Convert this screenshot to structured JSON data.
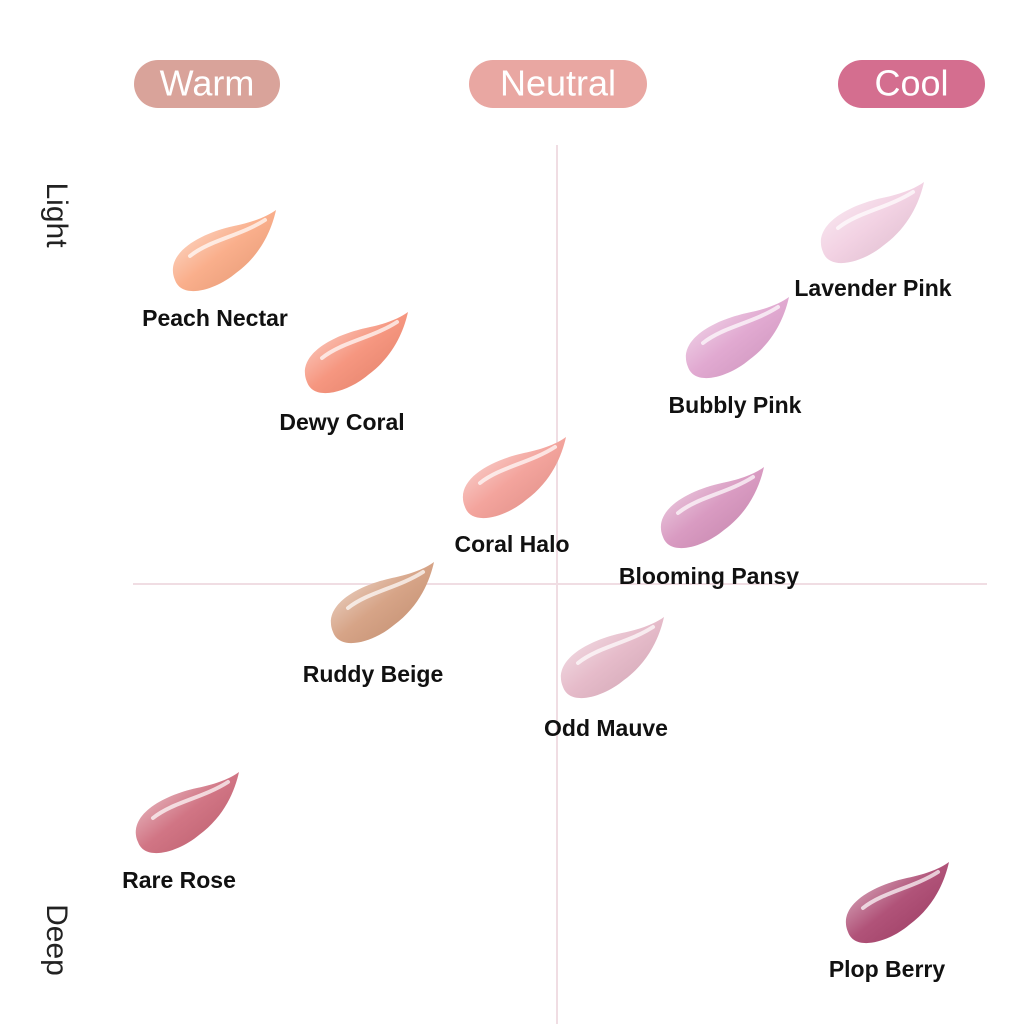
{
  "columns": [
    "Warm",
    "Neutral",
    "Cool"
  ],
  "rows": [
    "Light",
    "Deep"
  ],
  "nodes": [
    {
      "label": "Peach Nectar"
    },
    {
      "label": "Dewy Coral"
    },
    {
      "label": "Coral Halo"
    },
    {
      "label": "Ruddy Beige"
    },
    {
      "label": "Rare Rose"
    },
    {
      "label": "Lavender Pink"
    },
    {
      "label": "Bubbly Pink"
    },
    {
      "label": "Blooming Pansy"
    },
    {
      "label": "Odd Mauve"
    },
    {
      "label": "Plop Berry"
    }
  ]
}
